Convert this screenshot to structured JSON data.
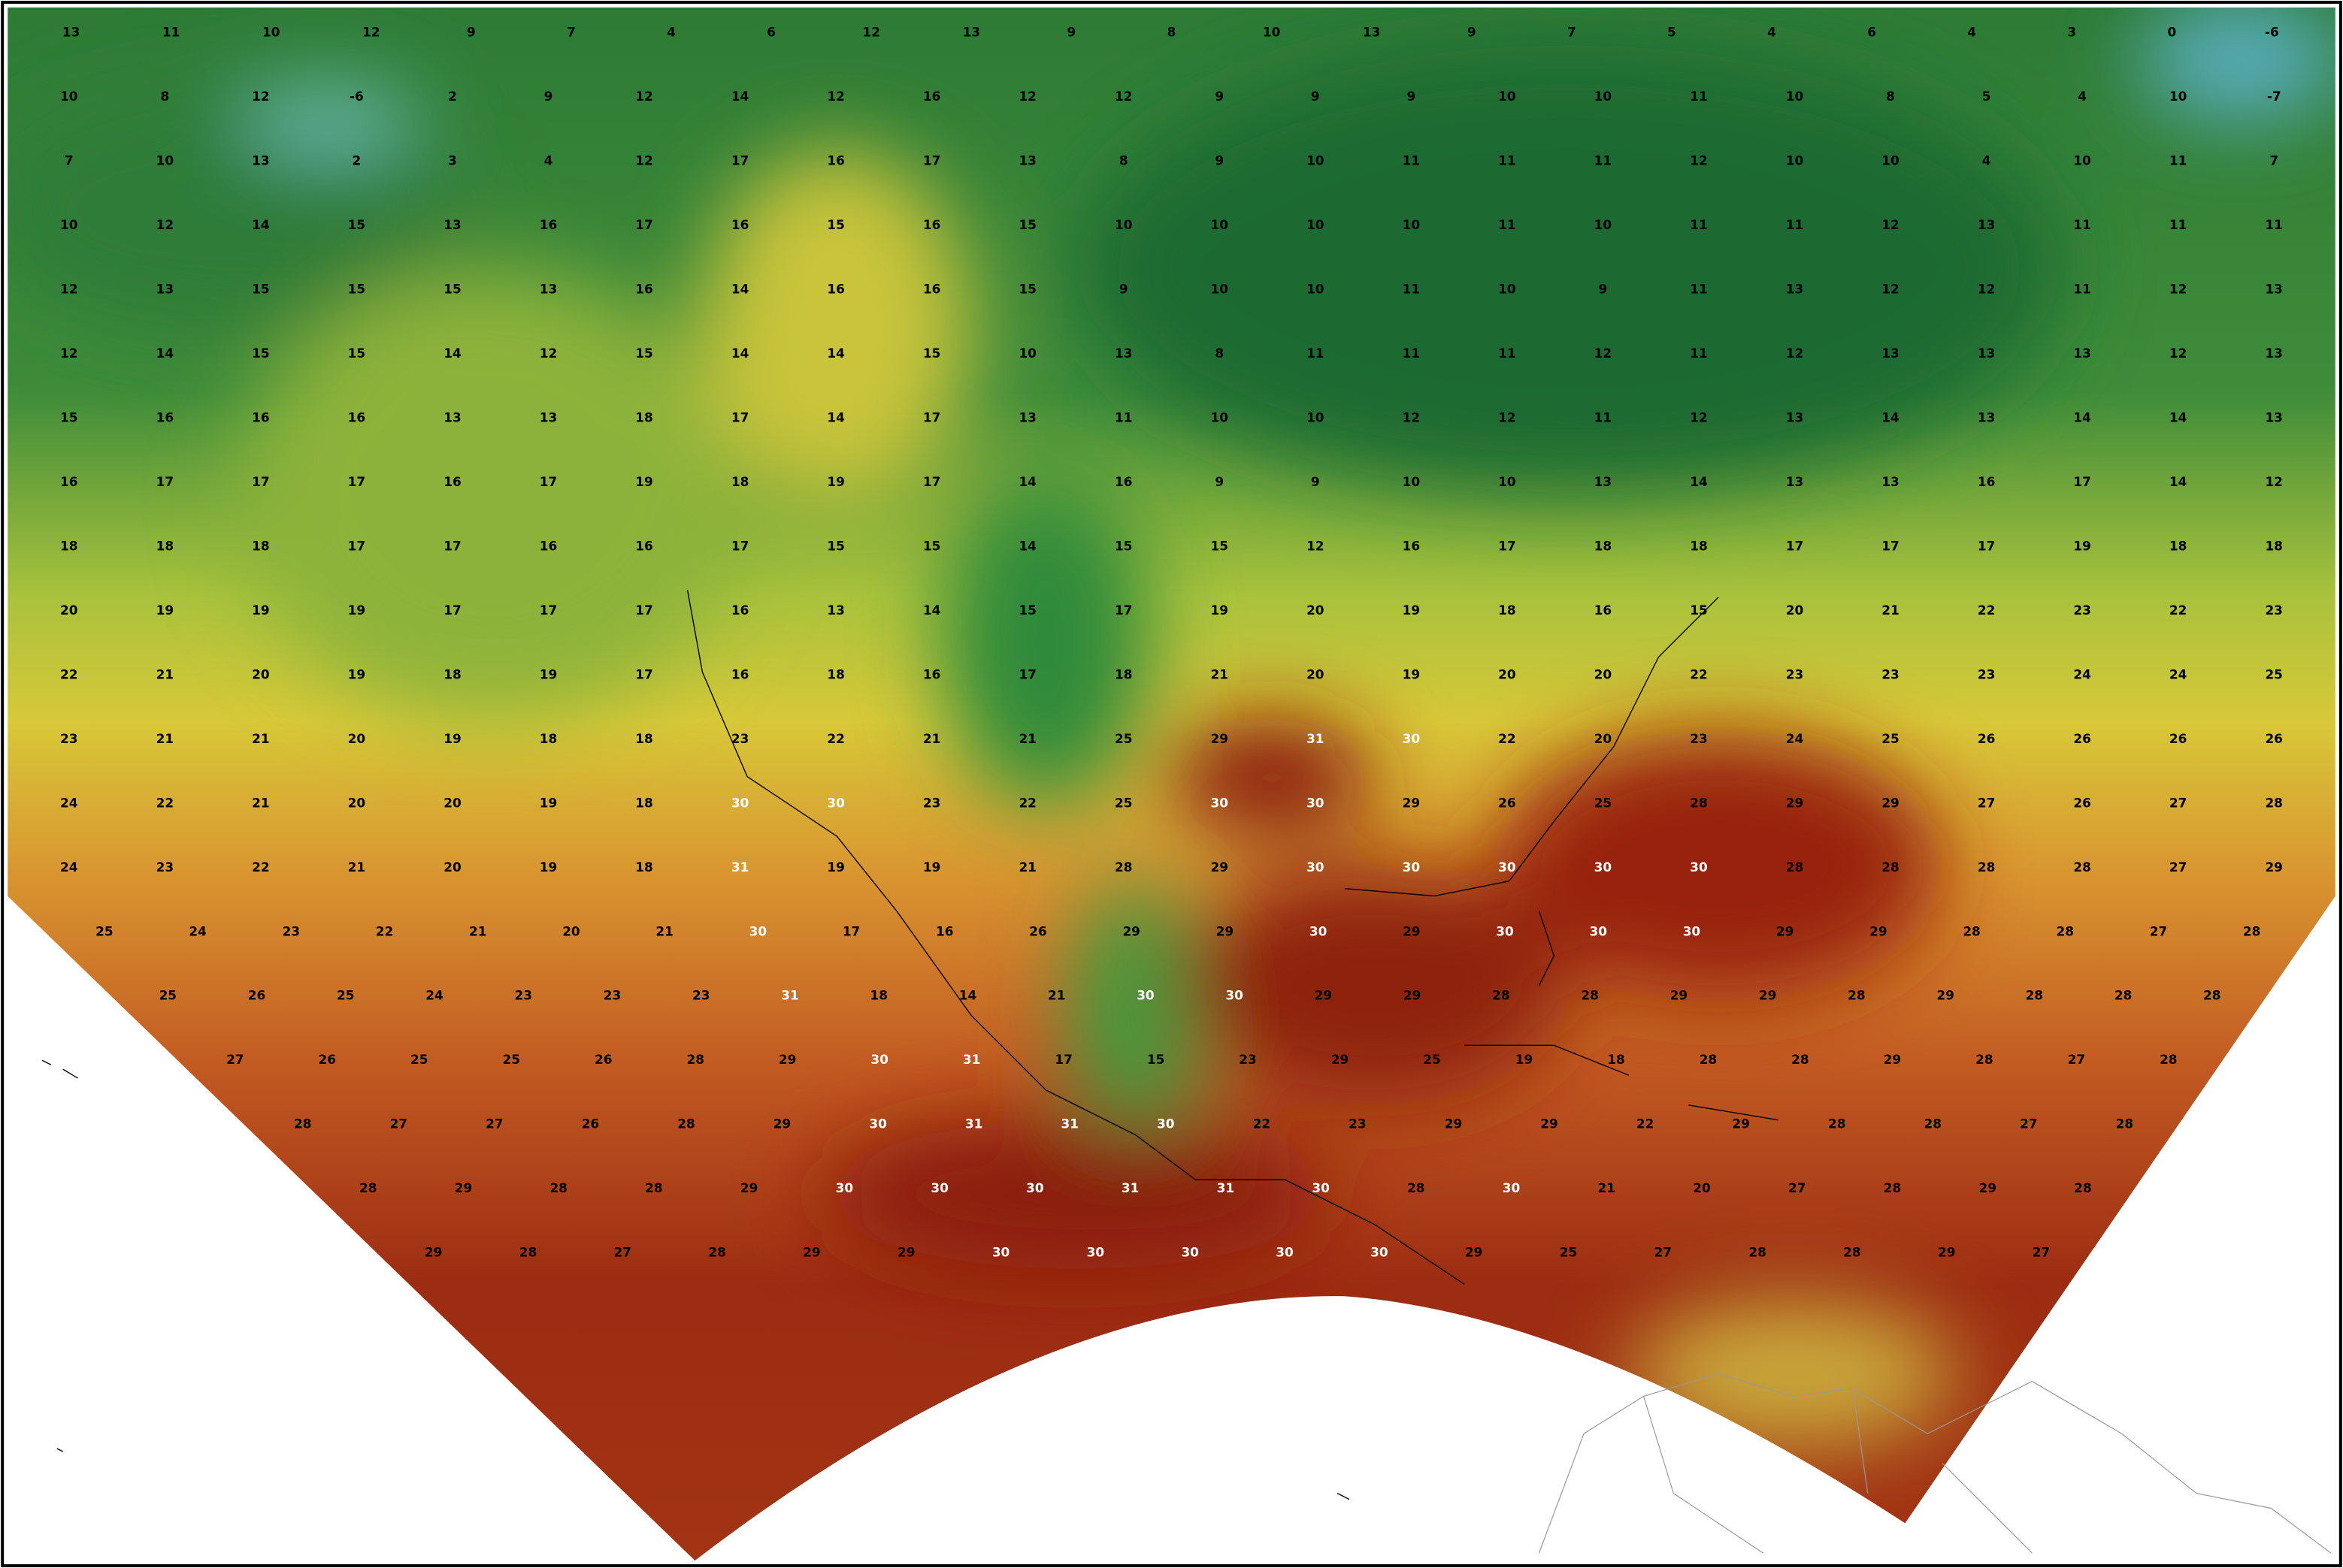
{
  "map": {
    "rows": [
      [
        13,
        11,
        10,
        12,
        9,
        7,
        4,
        6,
        12,
        13,
        9,
        8,
        10,
        13,
        9,
        7,
        5,
        4,
        6,
        4,
        3,
        0,
        -6
      ],
      [
        10,
        8,
        12,
        -6,
        2,
        9,
        12,
        14,
        12,
        16,
        12,
        12,
        9,
        9,
        9,
        10,
        10,
        11,
        10,
        8,
        5,
        4,
        10,
        -7
      ],
      [
        7,
        10,
        13,
        2,
        3,
        4,
        12,
        17,
        16,
        17,
        13,
        8,
        9,
        10,
        11,
        11,
        11,
        12,
        10,
        10,
        4,
        10,
        11,
        7
      ],
      [
        10,
        12,
        14,
        15,
        13,
        16,
        17,
        16,
        15,
        16,
        15,
        10,
        10,
        10,
        10,
        11,
        10,
        11,
        11,
        12,
        13,
        11,
        11,
        11
      ],
      [
        12,
        13,
        15,
        15,
        15,
        13,
        16,
        14,
        16,
        16,
        15,
        9,
        10,
        10,
        11,
        10,
        9,
        11,
        13,
        12,
        12,
        11,
        12,
        13
      ],
      [
        12,
        14,
        15,
        15,
        14,
        12,
        15,
        14,
        14,
        15,
        10,
        13,
        8,
        11,
        11,
        11,
        12,
        11,
        12,
        13,
        13,
        13,
        12,
        13
      ],
      [
        15,
        16,
        16,
        16,
        13,
        13,
        18,
        17,
        14,
        17,
        13,
        11,
        10,
        10,
        12,
        12,
        11,
        12,
        13,
        14,
        13,
        14,
        14,
        13
      ],
      [
        16,
        17,
        17,
        17,
        16,
        17,
        19,
        18,
        19,
        17,
        14,
        16,
        9,
        9,
        10,
        10,
        13,
        14,
        13,
        13,
        16,
        17,
        14,
        12
      ],
      [
        18,
        18,
        18,
        17,
        17,
        16,
        16,
        17,
        15,
        15,
        14,
        15,
        15,
        12,
        16,
        17,
        18,
        18,
        17,
        17,
        17,
        19,
        18,
        18
      ],
      [
        20,
        19,
        19,
        19,
        17,
        17,
        17,
        16,
        13,
        14,
        15,
        17,
        19,
        20,
        19,
        18,
        16,
        15,
        20,
        21,
        22,
        23,
        22,
        23
      ],
      [
        22,
        21,
        20,
        19,
        18,
        19,
        17,
        16,
        18,
        16,
        17,
        18,
        21,
        20,
        19,
        20,
        20,
        22,
        23,
        23,
        23,
        24,
        24,
        25
      ],
      [
        23,
        21,
        21,
        20,
        19,
        18,
        18,
        23,
        22,
        21,
        21,
        25,
        29,
        31,
        30,
        22,
        20,
        23,
        24,
        25,
        26,
        26,
        26,
        26
      ],
      [
        24,
        22,
        21,
        20,
        20,
        19,
        18,
        30,
        30,
        23,
        22,
        25,
        30,
        30,
        29,
        26,
        25,
        28,
        29,
        29,
        27,
        26,
        27,
        28
      ],
      [
        24,
        23,
        22,
        21,
        20,
        19,
        18,
        31,
        19,
        19,
        21,
        28,
        29,
        30,
        30,
        30,
        30,
        30,
        28,
        28,
        28,
        28,
        27,
        29
      ],
      [
        25,
        24,
        23,
        22,
        21,
        20,
        21,
        30,
        17,
        16,
        26,
        29,
        29,
        30,
        29,
        30,
        30,
        30,
        29,
        29,
        28,
        28,
        27,
        28
      ],
      [
        25,
        26,
        25,
        24,
        23,
        23,
        23,
        31,
        18,
        14,
        21,
        30,
        30,
        29,
        29,
        28,
        28,
        29,
        29,
        28,
        29,
        28,
        28,
        28
      ],
      [
        27,
        26,
        25,
        25,
        26,
        28,
        29,
        30,
        31,
        17,
        15,
        23,
        29,
        25,
        19,
        18,
        28,
        28,
        29,
        28,
        27,
        28
      ],
      [
        28,
        27,
        27,
        26,
        28,
        29,
        30,
        31,
        31,
        30,
        22,
        23,
        29,
        29,
        22,
        29,
        28,
        28,
        27,
        28
      ],
      [
        28,
        29,
        28,
        28,
        29,
        30,
        30,
        30,
        31,
        31,
        30,
        28,
        30,
        21,
        20,
        27,
        28,
        29,
        28
      ],
      [
        29,
        28,
        27,
        28,
        29,
        29,
        30,
        30,
        30,
        30,
        30,
        29,
        25,
        27,
        28,
        28,
        29,
        27
      ]
    ]
  }
}
